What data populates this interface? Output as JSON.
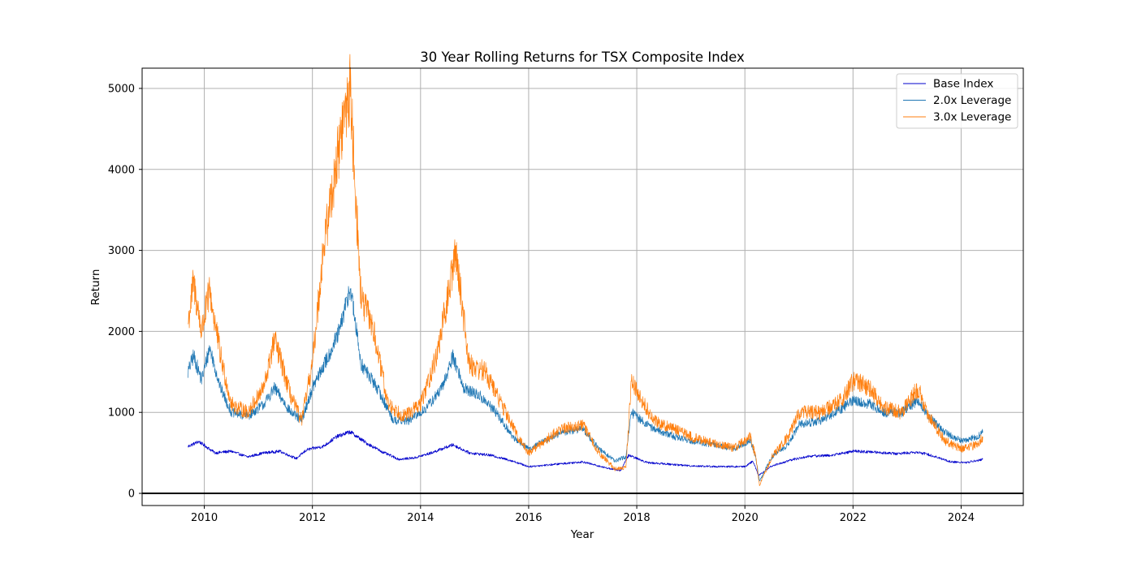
{
  "chart_data": {
    "type": "line",
    "title": "30 Year Rolling Returns for TSX Composite Index",
    "xlabel": "Year",
    "ylabel": "Return",
    "xlim": [
      2008.85,
      2025.15
    ],
    "ylim": [
      -150,
      5250
    ],
    "x_ticks": [
      2010,
      2012,
      2014,
      2016,
      2018,
      2020,
      2022,
      2024
    ],
    "y_ticks": [
      0,
      1000,
      2000,
      3000,
      4000,
      5000
    ],
    "grid": true,
    "legend_position": "top-right",
    "reference_line": {
      "y": 0,
      "color": "#000000"
    },
    "series": [
      {
        "name": "Base Index",
        "color": "#0000cc",
        "x": [
          2009.7,
          2009.9,
          2010.2,
          2010.5,
          2010.8,
          2011.1,
          2011.4,
          2011.7,
          2011.9,
          2012.2,
          2012.45,
          2012.7,
          2013.0,
          2013.3,
          2013.6,
          2013.9,
          2014.2,
          2014.6,
          2014.9,
          2015.3,
          2015.7,
          2016.0,
          2016.5,
          2017.0,
          2017.4,
          2017.7,
          2017.85,
          2018.2,
          2018.6,
          2019.0,
          2019.5,
          2020.0,
          2020.15,
          2020.25,
          2020.5,
          2020.9,
          2021.2,
          2021.6,
          2022.0,
          2022.4,
          2022.8,
          2023.2,
          2023.5,
          2023.8,
          2024.1,
          2024.4
        ],
        "y": [
          580,
          640,
          500,
          520,
          450,
          500,
          520,
          430,
          540,
          580,
          700,
          760,
          620,
          510,
          420,
          440,
          500,
          600,
          500,
          470,
          400,
          330,
          360,
          390,
          320,
          280,
          470,
          380,
          360,
          340,
          330,
          330,
          400,
          220,
          340,
          420,
          460,
          470,
          520,
          510,
          490,
          510,
          460,
          390,
          380,
          420
        ]
      },
      {
        "name": "2.0x Leverage",
        "color": "#1f77b4",
        "x": [
          2009.7,
          2009.8,
          2009.95,
          2010.1,
          2010.3,
          2010.5,
          2010.8,
          2011.1,
          2011.3,
          2011.6,
          2011.8,
          2012.0,
          2012.3,
          2012.5,
          2012.7,
          2012.9,
          2013.2,
          2013.5,
          2013.8,
          2014.1,
          2014.4,
          2014.6,
          2014.8,
          2015.1,
          2015.4,
          2015.7,
          2016.0,
          2016.3,
          2016.6,
          2017.0,
          2017.3,
          2017.6,
          2017.8,
          2017.9,
          2018.3,
          2018.7,
          2019.0,
          2019.4,
          2019.8,
          2020.1,
          2020.2,
          2020.27,
          2020.5,
          2020.8,
          2021.0,
          2021.4,
          2021.8,
          2022.0,
          2022.3,
          2022.6,
          2022.9,
          2023.2,
          2023.4,
          2023.7,
          2024.0,
          2024.3,
          2024.4
        ],
        "y": [
          1500,
          1700,
          1400,
          1800,
          1300,
          1000,
          950,
          1100,
          1300,
          1000,
          900,
          1300,
          1700,
          2000,
          2550,
          1600,
          1300,
          900,
          900,
          1050,
          1300,
          1700,
          1300,
          1200,
          1000,
          700,
          550,
          650,
          750,
          800,
          550,
          400,
          450,
          1000,
          800,
          700,
          650,
          600,
          550,
          650,
          450,
          150,
          450,
          600,
          850,
          900,
          1050,
          1150,
          1100,
          1000,
          1000,
          1150,
          950,
          750,
          650,
          700,
          750
        ]
      },
      {
        "name": "3.0x Leverage",
        "color": "#ff7f0e",
        "x": [
          2009.7,
          2009.8,
          2009.95,
          2010.1,
          2010.3,
          2010.5,
          2010.8,
          2011.1,
          2011.3,
          2011.6,
          2011.8,
          2012.0,
          2012.2,
          2012.4,
          2012.6,
          2012.7,
          2012.9,
          2013.1,
          2013.4,
          2013.7,
          2014.0,
          2014.3,
          2014.5,
          2014.65,
          2014.9,
          2015.2,
          2015.5,
          2015.8,
          2016.0,
          2016.3,
          2016.6,
          2017.0,
          2017.3,
          2017.6,
          2017.8,
          2017.9,
          2018.3,
          2018.7,
          2019.0,
          2019.4,
          2019.8,
          2020.1,
          2020.2,
          2020.27,
          2020.5,
          2020.8,
          2021.0,
          2021.4,
          2021.8,
          2022.0,
          2022.3,
          2022.6,
          2022.9,
          2023.2,
          2023.4,
          2023.7,
          2024.0,
          2024.3,
          2024.4
        ],
        "y": [
          2100,
          2600,
          2000,
          2500,
          1700,
          1100,
          1000,
          1300,
          1900,
          1200,
          900,
          1600,
          3000,
          3900,
          4700,
          5000,
          2400,
          2100,
          1100,
          950,
          1100,
          1700,
          2400,
          3000,
          1600,
          1500,
          1100,
          700,
          500,
          650,
          800,
          850,
          500,
          300,
          320,
          1400,
          900,
          800,
          700,
          620,
          560,
          700,
          450,
          100,
          450,
          700,
          1000,
          1000,
          1150,
          1400,
          1300,
          1050,
          1000,
          1300,
          950,
          650,
          550,
          600,
          700
        ]
      }
    ]
  }
}
